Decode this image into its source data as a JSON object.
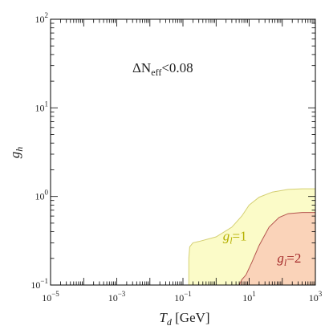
{
  "chart_data": {
    "type": "area",
    "title": "",
    "xlabel": {
      "main": "T",
      "sub": "d",
      "unit": " [GeV]"
    },
    "ylabel": {
      "main": "g",
      "sub": "h"
    },
    "xscale": "log",
    "yscale": "log",
    "xlim": [
      1e-05,
      1000
    ],
    "ylim": [
      0.1,
      100
    ],
    "x_ticks": [
      {
        "value": 1e-05,
        "base": "10",
        "exp": "−5"
      },
      {
        "value": 0.001,
        "base": "10",
        "exp": "−3"
      },
      {
        "value": 0.1,
        "base": "10",
        "exp": "−1"
      },
      {
        "value": 10,
        "base": "10",
        "exp": "1"
      },
      {
        "value": 1000,
        "base": "10",
        "exp": "3"
      }
    ],
    "y_ticks": [
      {
        "value": 0.1,
        "base": "10",
        "exp": "−1"
      },
      {
        "value": 1,
        "base": "10",
        "exp": "0"
      },
      {
        "value": 10,
        "base": "10",
        "exp": "1"
      },
      {
        "value": 100,
        "base": "10",
        "exp": "2"
      }
    ],
    "annotation": {
      "prefix": "ΔN",
      "sub": "eff",
      "suffix": "<0.08"
    },
    "series": [
      {
        "name": "gl=1",
        "label": {
          "main": "g",
          "sub": "l",
          "rest": "=1"
        },
        "label_pos": [
          1.6,
          0.32
        ],
        "fill": "#fbfbc8",
        "stroke": "#d4cf73",
        "text_color": "#b5b000",
        "boundary": [
          [
            0.15,
            0.1
          ],
          [
            0.15,
            0.2
          ],
          [
            0.16,
            0.27
          ],
          [
            0.2,
            0.3
          ],
          [
            0.3,
            0.31
          ],
          [
            1,
            0.35
          ],
          [
            3,
            0.45
          ],
          [
            6,
            0.6
          ],
          [
            10,
            0.8
          ],
          [
            20,
            0.98
          ],
          [
            50,
            1.12
          ],
          [
            150,
            1.2
          ],
          [
            400,
            1.22
          ],
          [
            1000,
            1.22
          ]
        ]
      },
      {
        "name": "gl=2",
        "label": {
          "main": "g",
          "sub": "l",
          "rest": "=2"
        },
        "label_pos": [
          70,
          0.18
        ],
        "fill": "#fad3b9",
        "stroke": "#b3544d",
        "text_color": "#a52a2a",
        "boundary": [
          [
            5,
            0.1
          ],
          [
            6,
            0.115
          ],
          [
            8,
            0.13
          ],
          [
            12,
            0.18
          ],
          [
            20,
            0.28
          ],
          [
            40,
            0.45
          ],
          [
            80,
            0.58
          ],
          [
            150,
            0.64
          ],
          [
            400,
            0.66
          ],
          [
            1000,
            0.66
          ]
        ]
      }
    ],
    "grid": false,
    "legend": "none"
  }
}
